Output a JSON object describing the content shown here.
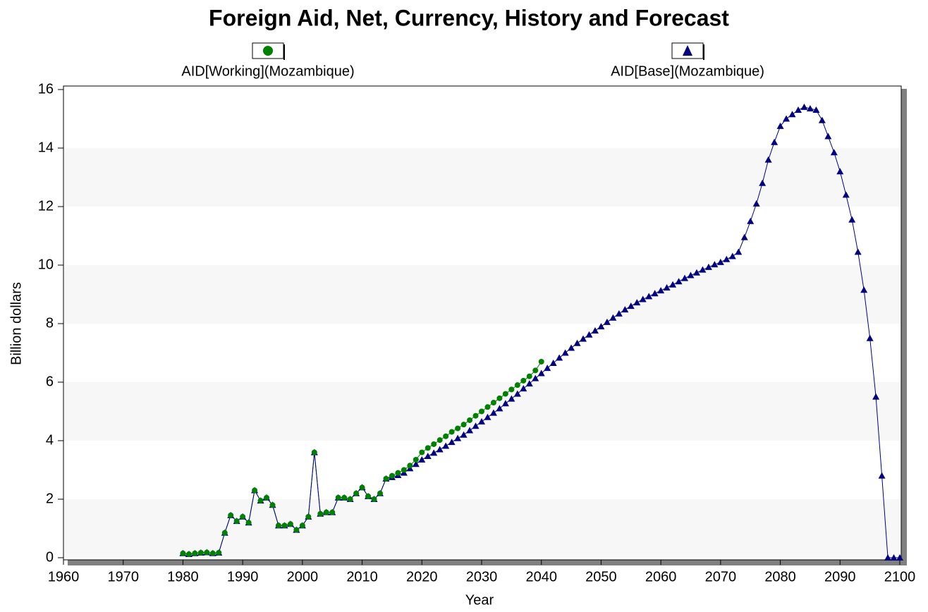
{
  "chart_data": {
    "type": "line",
    "title": "Foreign Aid, Net, Currency, History and Forecast",
    "x_label": "Year",
    "y_label": "Billion dollars",
    "xlim": [
      1960,
      2100
    ],
    "xticks": [
      1960,
      1970,
      1980,
      1990,
      2000,
      2010,
      2020,
      2030,
      2040,
      2050,
      2060,
      2070,
      2080,
      2090,
      2100
    ],
    "ylim": [
      0,
      16
    ],
    "yticks": [
      0,
      2,
      4,
      6,
      8,
      10,
      12,
      14,
      16
    ],
    "grid": "bands",
    "legend": "top",
    "series": [
      {
        "name": "AID[Working](Mozambique)",
        "color": "#008000",
        "marker": "circle",
        "x": [
          1980,
          1981,
          1982,
          1983,
          1984,
          1985,
          1986,
          1987,
          1988,
          1989,
          1990,
          1991,
          1992,
          1993,
          1994,
          1995,
          1996,
          1997,
          1998,
          1999,
          2000,
          2001,
          2002,
          2003,
          2004,
          2005,
          2006,
          2007,
          2008,
          2009,
          2010,
          2011,
          2012,
          2013,
          2014,
          2015,
          2016,
          2017,
          2018,
          2019,
          2020,
          2021,
          2022,
          2023,
          2024,
          2025,
          2026,
          2027,
          2028,
          2029,
          2030,
          2031,
          2032,
          2033,
          2034,
          2035,
          2036,
          2037,
          2038,
          2039,
          2040
        ],
        "values": [
          0.15,
          0.12,
          0.15,
          0.17,
          0.18,
          0.15,
          0.17,
          0.85,
          1.45,
          1.25,
          1.4,
          1.2,
          2.3,
          1.95,
          2.05,
          1.8,
          1.1,
          1.1,
          1.15,
          0.95,
          1.1,
          1.4,
          3.6,
          1.5,
          1.55,
          1.55,
          2.05,
          2.05,
          2.0,
          2.2,
          2.4,
          2.1,
          2.0,
          2.2,
          2.7,
          2.8,
          2.9,
          3.0,
          3.15,
          3.35,
          3.6,
          3.75,
          3.88,
          4.02,
          4.15,
          4.3,
          4.42,
          4.55,
          4.7,
          4.85,
          5.0,
          5.15,
          5.3,
          5.45,
          5.6,
          5.75,
          5.9,
          6.05,
          6.2,
          6.4,
          6.7
        ]
      },
      {
        "name": "AID[Base](Mozambique)",
        "color": "#000080",
        "marker": "triangle",
        "x": [
          1980,
          1981,
          1982,
          1983,
          1984,
          1985,
          1986,
          1987,
          1988,
          1989,
          1990,
          1991,
          1992,
          1993,
          1994,
          1995,
          1996,
          1997,
          1998,
          1999,
          2000,
          2001,
          2002,
          2003,
          2004,
          2005,
          2006,
          2007,
          2008,
          2009,
          2010,
          2011,
          2012,
          2013,
          2014,
          2015,
          2016,
          2017,
          2018,
          2019,
          2020,
          2021,
          2022,
          2023,
          2024,
          2025,
          2026,
          2027,
          2028,
          2029,
          2030,
          2031,
          2032,
          2033,
          2034,
          2035,
          2036,
          2037,
          2038,
          2039,
          2040,
          2041,
          2042,
          2043,
          2044,
          2045,
          2046,
          2047,
          2048,
          2049,
          2050,
          2051,
          2052,
          2053,
          2054,
          2055,
          2056,
          2057,
          2058,
          2059,
          2060,
          2061,
          2062,
          2063,
          2064,
          2065,
          2066,
          2067,
          2068,
          2069,
          2070,
          2071,
          2072,
          2073,
          2074,
          2075,
          2076,
          2077,
          2078,
          2079,
          2080,
          2081,
          2082,
          2083,
          2084,
          2085,
          2086,
          2087,
          2088,
          2089,
          2090,
          2091,
          2092,
          2093,
          2094,
          2095,
          2096,
          2097,
          2098,
          2099,
          2100
        ],
        "values": [
          0.15,
          0.12,
          0.15,
          0.17,
          0.18,
          0.15,
          0.17,
          0.85,
          1.45,
          1.25,
          1.4,
          1.2,
          2.3,
          1.95,
          2.05,
          1.8,
          1.1,
          1.1,
          1.15,
          0.95,
          1.1,
          1.4,
          3.6,
          1.5,
          1.55,
          1.55,
          2.05,
          2.05,
          2.0,
          2.2,
          2.4,
          2.1,
          2.0,
          2.2,
          2.7,
          2.75,
          2.82,
          2.9,
          3.05,
          3.2,
          3.35,
          3.47,
          3.58,
          3.7,
          3.82,
          3.95,
          4.08,
          4.2,
          4.35,
          4.5,
          4.65,
          4.8,
          4.95,
          5.1,
          5.27,
          5.43,
          5.6,
          5.78,
          5.95,
          6.13,
          6.3,
          6.48,
          6.65,
          6.83,
          7.0,
          7.17,
          7.33,
          7.48,
          7.62,
          7.76,
          7.9,
          8.05,
          8.2,
          8.34,
          8.48,
          8.6,
          8.72,
          8.83,
          8.93,
          9.03,
          9.13,
          9.23,
          9.33,
          9.44,
          9.55,
          9.65,
          9.74,
          9.84,
          9.93,
          10.02,
          10.1,
          10.2,
          10.3,
          10.45,
          10.95,
          11.5,
          12.1,
          12.8,
          13.6,
          14.2,
          14.75,
          15.0,
          15.15,
          15.3,
          15.4,
          15.35,
          15.3,
          14.95,
          14.4,
          13.85,
          13.2,
          12.4,
          11.55,
          10.45,
          9.15,
          7.5,
          5.5,
          2.8,
          0,
          0,
          0
        ]
      }
    ]
  }
}
